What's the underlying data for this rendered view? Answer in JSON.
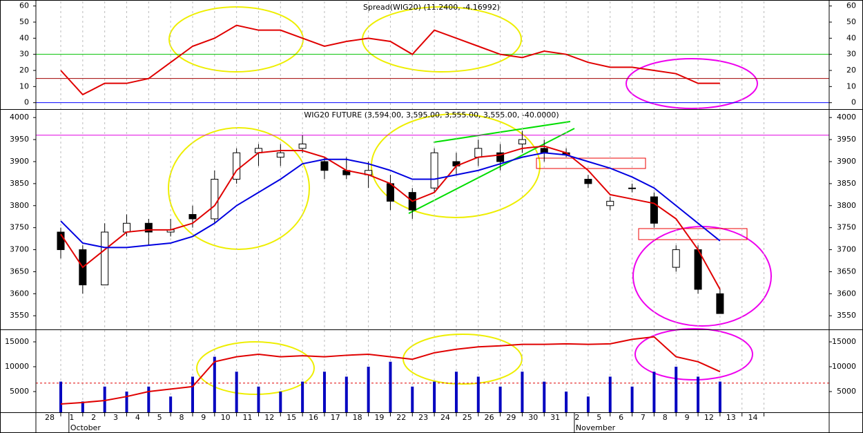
{
  "chart_data": [
    {
      "type": "line",
      "title": "Spread(WIG20) (11.2400, -4.16992)",
      "series": [
        {
          "name": "Spread",
          "color": "#e00000",
          "values": [
            20,
            5,
            12,
            12,
            15,
            25,
            35,
            40,
            48,
            45,
            45,
            40,
            35,
            38,
            40,
            38,
            30,
            45,
            40,
            35,
            30,
            28,
            32,
            30,
            25,
            22,
            22,
            20,
            18,
            12,
            12,
            null,
            null
          ]
        }
      ],
      "hlines": [
        {
          "value": 30,
          "color": "#00c000"
        },
        {
          "value": 15,
          "color": "#a00000"
        },
        {
          "value": 0,
          "color": "#0000ff"
        }
      ],
      "ylim": [
        -4,
        62
      ],
      "yticks": [
        0,
        10,
        20,
        30,
        40,
        50,
        60
      ]
    },
    {
      "type": "candlestick",
      "title": "WIG20 FUTURE (3,594.00, 3,595.00, 3,555.00, 3,555.00, -40.0000)",
      "open": [
        3740,
        3700,
        3620,
        3740,
        3760,
        3740,
        3780,
        3770,
        3860,
        3920,
        3910,
        3930,
        3900,
        3880,
        3870,
        3850,
        3830,
        3840,
        3900,
        3910,
        3920,
        3940,
        3930,
        3920,
        3860,
        3800,
        3840,
        3820,
        3660,
        3700,
        3600,
        null,
        null
      ],
      "high": [
        3750,
        3710,
        3760,
        3780,
        3770,
        3770,
        3800,
        3880,
        3930,
        3940,
        3940,
        3960,
        3910,
        3910,
        3900,
        3870,
        3840,
        3930,
        3920,
        3950,
        3940,
        3970,
        3950,
        3930,
        3870,
        3820,
        3850,
        3830,
        3710,
        3710,
        3610,
        null,
        null
      ],
      "low": [
        3680,
        3600,
        3620,
        3730,
        3710,
        3730,
        3750,
        3760,
        3850,
        3890,
        3890,
        3920,
        3860,
        3860,
        3840,
        3790,
        3770,
        3830,
        3870,
        3890,
        3880,
        3920,
        3900,
        3910,
        3840,
        3790,
        3830,
        3750,
        3650,
        3600,
        3555,
        null,
        null
      ],
      "close": [
        3700,
        3620,
        3740,
        3760,
        3740,
        3745,
        3770,
        3860,
        3920,
        3930,
        3920,
        3940,
        3880,
        3870,
        3880,
        3810,
        3790,
        3920,
        3890,
        3930,
        3900,
        3950,
        3920,
        3915,
        3850,
        3810,
        3840,
        3760,
        3700,
        3610,
        3555,
        null,
        null
      ],
      "series": [
        {
          "name": "MA short",
          "color": "#e00000",
          "values": [
            3735,
            3660,
            3700,
            3740,
            3745,
            3745,
            3760,
            3800,
            3880,
            3920,
            3925,
            3925,
            3910,
            3880,
            3870,
            3850,
            3810,
            3830,
            3890,
            3910,
            3915,
            3930,
            3935,
            3920,
            3880,
            3825,
            3815,
            3805,
            3770,
            3700,
            3610,
            null,
            null
          ]
        },
        {
          "name": "MA long",
          "color": "#0000e0",
          "values": [
            3765,
            3715,
            3705,
            3705,
            3710,
            3715,
            3730,
            3760,
            3800,
            3830,
            3860,
            3895,
            3905,
            3905,
            3895,
            3880,
            3860,
            3860,
            3870,
            3880,
            3895,
            3910,
            3920,
            3915,
            3900,
            3885,
            3865,
            3840,
            3800,
            3760,
            3720,
            null,
            null
          ]
        }
      ],
      "hlines": [
        {
          "value": 3960,
          "color": "#e000e0"
        }
      ],
      "ylim": [
        3519,
        4016
      ],
      "yticks": [
        3550,
        3600,
        3650,
        3700,
        3750,
        3800,
        3850,
        3900,
        3950,
        4000
      ]
    },
    {
      "type": "bar",
      "color": "#0000c0",
      "values": [
        7000,
        3000,
        6000,
        5000,
        6000,
        4000,
        8000,
        12000,
        9000,
        6000,
        5000,
        7000,
        9000,
        8000,
        10000,
        11000,
        6000,
        7000,
        9000,
        8000,
        6000,
        9000,
        7000,
        5000,
        4000,
        8000,
        6000,
        9000,
        10000,
        8000,
        7000,
        null,
        null
      ],
      "series": [
        {
          "name": "Volume MA",
          "color": "#e00000",
          "values": [
            2500,
            2800,
            3200,
            4000,
            5000,
            5500,
            6000,
            11000,
            12000,
            12500,
            12000,
            12200,
            12000,
            12300,
            12500,
            12000,
            11500,
            12800,
            13500,
            14000,
            14200,
            14500,
            14500,
            14600,
            14500,
            14600,
            15500,
            16000,
            12000,
            11000,
            9000,
            null,
            null
          ]
        }
      ],
      "hlines": [
        {
          "value": 6700,
          "color": "#e00000",
          "dashed": true
        }
      ],
      "ylim": [
        833,
        17361
      ],
      "yticks": [
        5000,
        10000,
        15000
      ],
      "categories": [
        "28",
        "1",
        "2",
        "3",
        "4",
        "5",
        "8",
        "9",
        "10",
        "11",
        "12",
        "15",
        "16",
        "17",
        "18",
        "19",
        "22",
        "23",
        "24",
        "25",
        "26",
        "29",
        "30",
        "31",
        "2",
        "5",
        "6",
        "7",
        "8",
        "9",
        "12",
        "13",
        "14"
      ],
      "x_months": [
        "October",
        "November"
      ]
    }
  ]
}
